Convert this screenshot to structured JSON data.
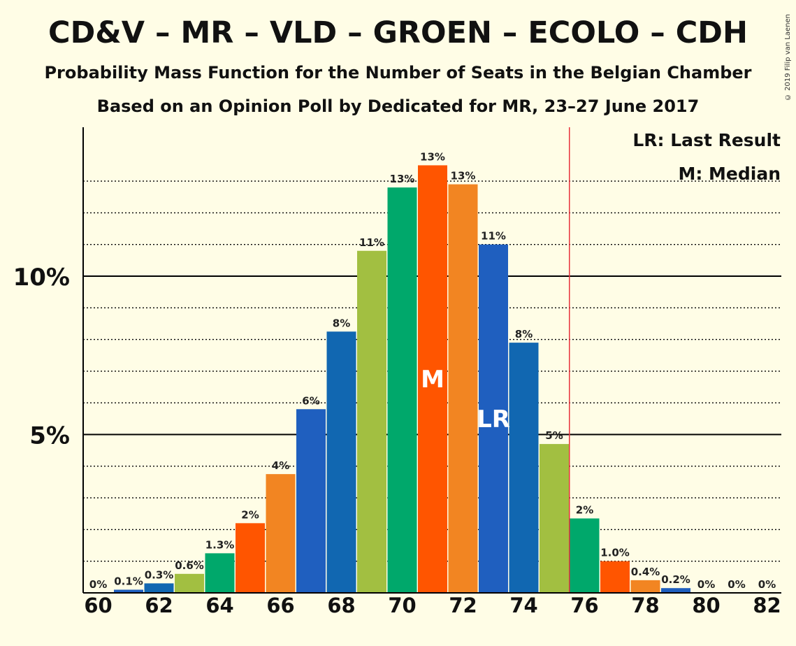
{
  "title": "CD&V – MR – VLD – GROEN – ECOLO – CDH",
  "subtitle": "Probability Mass Function for the Number of Seats in the Belgian Chamber",
  "subtitle2": "Based on an Opinion Poll by Dedicated for MR, 23–27 June 2017",
  "copyright": "© 2019 Filip van Laenen",
  "legend": {
    "last_result": "LR: Last Result",
    "median": "M: Median"
  },
  "colors": {
    "background": "#FFFDE6",
    "palette": [
      "#1F5FBF",
      "#1167B1",
      "#A2BF41",
      "#00A86B",
      "#FF5500",
      "#F28522"
    ],
    "last_result_line": "#E8323C"
  },
  "chart_data": {
    "type": "bar",
    "x": [
      60,
      61,
      62,
      63,
      64,
      65,
      66,
      67,
      68,
      69,
      70,
      71,
      72,
      73,
      74,
      75,
      76,
      77,
      78,
      79,
      80,
      81,
      82
    ],
    "values": [
      0,
      0.1,
      0.3,
      0.6,
      1.25,
      2.2,
      3.75,
      5.8,
      8.25,
      10.8,
      12.8,
      13.5,
      12.9,
      11.0,
      7.9,
      4.7,
      2.35,
      1.0,
      0.4,
      0.15,
      0,
      0,
      0
    ],
    "value_labels": [
      "0%",
      "0.1%",
      "0.3%",
      "0.6%",
      "1.3%",
      "2%",
      "4%",
      "6%",
      "8%",
      "11%",
      "13%",
      "13%",
      "13%",
      "11%",
      "8%",
      "5%",
      "2%",
      "1.0%",
      "0.4%",
      "0.2%",
      "0%",
      "0%",
      "0%"
    ],
    "bar_colors": [
      "#1167B1",
      "#1F5FBF",
      "#1167B1",
      "#A2BF41",
      "#00A86B",
      "#FF5500",
      "#F28522",
      "#1F5FBF",
      "#1167B1",
      "#A2BF41",
      "#00A86B",
      "#FF5500",
      "#F28522",
      "#1F5FBF",
      "#1167B1",
      "#A2BF41",
      "#00A86B",
      "#FF5500",
      "#F28522",
      "#1F5FBF",
      "#1167B1",
      "#A2BF41",
      "#00A86B"
    ],
    "x_ticks": [
      60,
      62,
      64,
      66,
      68,
      70,
      72,
      74,
      76,
      78,
      80,
      82
    ],
    "y_ticks": [
      {
        "value": 5,
        "label": "5%"
      },
      {
        "value": 10,
        "label": "10%"
      }
    ],
    "ylim": [
      0,
      14.7
    ],
    "median": {
      "seats": 71,
      "label": "M"
    },
    "last_result": {
      "seats": 73,
      "label": "LR"
    },
    "majority_line": 75.5
  }
}
